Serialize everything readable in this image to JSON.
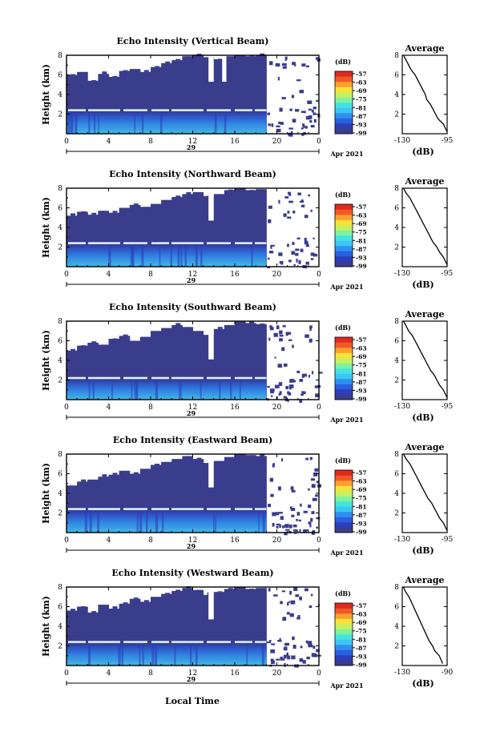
{
  "figure": {
    "xlabel": "Local Time",
    "date_label": "Apr 2021",
    "day_label": "29",
    "units_label": "(dB)"
  },
  "colorbar": {
    "ticks": [
      "-57",
      "-63",
      "-69",
      "-75",
      "-81",
      "-87",
      "-93",
      "-99"
    ],
    "colors": [
      "#3a3c8c",
      "#2b3fb8",
      "#2a5fe0",
      "#2f8ff0",
      "#3cc6f5",
      "#44e3e0",
      "#7ef2a0",
      "#c7f060",
      "#f5e23a",
      "#f8a030",
      "#f05a28",
      "#e02a20"
    ]
  },
  "chart_data": [
    {
      "type": "heatmap",
      "title": "Echo Intensity (Vertical Beam)",
      "ylabel": "Height (km)",
      "x_ticks": [
        "0",
        "4",
        "8",
        "12",
        "16",
        "20",
        "0"
      ],
      "y_ticks": [
        "8",
        "6",
        "4",
        "2"
      ],
      "xlim_hours": [
        0,
        24
      ],
      "ylim_km": [
        0,
        8
      ],
      "data_end_hour": 19,
      "bright_layer_km": 2.4,
      "top_profile_km": [
        6.0,
        6.3,
        5.4,
        6.1,
        5.8,
        6.4,
        6.6,
        6.3,
        6.8,
        7.2,
        7.5,
        7.9,
        8.0,
        7.8,
        7.6,
        7.9,
        8.0,
        7.9,
        8.0
      ],
      "gap_hours": [
        [
          13.5,
          14.0
        ],
        [
          14.8,
          15.2
        ]
      ],
      "average_profile": {
        "title": "Average",
        "xlabel": "(dB)",
        "x_ticks": [
          "-130",
          "-95"
        ],
        "xlim": [
          -130,
          -95
        ],
        "ylim_km": [
          0,
          8
        ],
        "y_ticks": [
          "8",
          "6",
          "4",
          "2"
        ],
        "height_km": [
          0.2,
          1.0,
          1.5,
          2.0,
          2.5,
          3.0,
          3.5,
          4.0,
          4.5,
          5.0,
          5.5,
          6.0,
          6.5,
          7.0,
          7.5,
          8.0
        ],
        "db": [
          -95,
          -98,
          -102,
          -104,
          -106,
          -108,
          -111,
          -112,
          -114,
          -116,
          -118,
          -120,
          -123,
          -125,
          -127,
          -129
        ]
      }
    },
    {
      "type": "heatmap",
      "title": "Echo Intensity (Northward Beam)",
      "ylabel": "Height (km)",
      "x_ticks": [
        "0",
        "4",
        "8",
        "12",
        "16",
        "20",
        "0"
      ],
      "y_ticks": [
        "8",
        "6",
        "4",
        "2"
      ],
      "xlim_hours": [
        0,
        24
      ],
      "ylim_km": [
        0,
        8
      ],
      "data_end_hour": 19,
      "bright_layer_km": 2.4,
      "top_profile_km": [
        5.2,
        5.6,
        5.3,
        5.7,
        5.5,
        6.0,
        6.3,
        6.1,
        6.4,
        6.8,
        7.1,
        7.4,
        7.6,
        7.2,
        7.4,
        7.8,
        8.0,
        7.8,
        7.9
      ],
      "gap_hours": [
        [
          13.5,
          14.0
        ]
      ],
      "average_profile": {
        "title": "Average",
        "xlabel": "(dB)",
        "x_ticks": [
          "-130",
          "-95"
        ],
        "xlim": [
          -130,
          -95
        ],
        "ylim_km": [
          0,
          8
        ],
        "y_ticks": [
          "8",
          "6",
          "4",
          "2"
        ],
        "height_km": [
          0.2,
          1.0,
          1.5,
          2.0,
          2.5,
          3.0,
          3.5,
          4.0,
          4.5,
          5.0,
          5.5,
          6.0,
          6.5,
          7.0,
          7.5,
          8.0
        ],
        "db": [
          -95,
          -98,
          -101,
          -103,
          -106,
          -108,
          -110,
          -112,
          -114,
          -116,
          -118,
          -120,
          -122,
          -124,
          -127,
          -129
        ]
      }
    },
    {
      "type": "heatmap",
      "title": "Echo Intensity (Southward Beam)",
      "ylabel": "Height (km)",
      "x_ticks": [
        "0",
        "4",
        "8",
        "12",
        "16",
        "20",
        "0"
      ],
      "y_ticks": [
        "8",
        "6",
        "4",
        "2"
      ],
      "xlim_hours": [
        0,
        24
      ],
      "ylim_km": [
        0,
        8
      ],
      "data_end_hour": 19,
      "bright_layer_km": 2.2,
      "top_profile_km": [
        5.0,
        5.5,
        5.8,
        5.6,
        6.2,
        6.5,
        6.0,
        6.4,
        7.0,
        7.3,
        7.6,
        7.4,
        7.0,
        6.6,
        7.2,
        7.6,
        8.0,
        7.8,
        7.7
      ],
      "gap_hours": [
        [
          13.5,
          14.0
        ]
      ],
      "average_profile": {
        "title": "Average",
        "xlabel": "(dB)",
        "x_ticks": [
          "-130",
          "-95"
        ],
        "xlim": [
          -130,
          -95
        ],
        "ylim_km": [
          0,
          8
        ],
        "y_ticks": [
          "8",
          "6",
          "4",
          "2"
        ],
        "height_km": [
          0.2,
          1.0,
          1.5,
          2.0,
          2.5,
          3.0,
          3.5,
          4.0,
          4.5,
          5.0,
          5.5,
          6.0,
          6.5,
          7.0,
          7.5,
          8.0
        ],
        "db": [
          -95,
          -98,
          -101,
          -103,
          -105,
          -108,
          -110,
          -112,
          -114,
          -116,
          -118,
          -120,
          -122,
          -125,
          -127,
          -129
        ]
      }
    },
    {
      "type": "heatmap",
      "title": "Echo Intensity (Eastward Beam)",
      "ylabel": "Height (km)",
      "x_ticks": [
        "0",
        "4",
        "8",
        "12",
        "16",
        "20",
        "0"
      ],
      "y_ticks": [
        "8",
        "6",
        "4",
        "2"
      ],
      "xlim_hours": [
        0,
        24
      ],
      "ylim_km": [
        0,
        8
      ],
      "data_end_hour": 19,
      "bright_layer_km": 2.4,
      "top_profile_km": [
        4.8,
        5.2,
        5.4,
        5.7,
        5.9,
        6.3,
        6.0,
        6.5,
        6.9,
        7.2,
        7.5,
        7.8,
        7.5,
        7.1,
        7.3,
        7.7,
        8.0,
        7.9,
        7.8
      ],
      "gap_hours": [
        [
          13.5,
          14.0
        ]
      ],
      "average_profile": {
        "title": "Average",
        "xlabel": "(dB)",
        "x_ticks": [
          "-130",
          "-95"
        ],
        "xlim": [
          -130,
          -95
        ],
        "ylim_km": [
          0,
          8
        ],
        "y_ticks": [
          "8",
          "6",
          "4",
          "2"
        ],
        "height_km": [
          0.2,
          1.0,
          1.5,
          2.0,
          2.5,
          3.0,
          3.5,
          4.0,
          4.5,
          5.0,
          5.5,
          6.0,
          6.5,
          7.0,
          7.5,
          8.0
        ],
        "db": [
          -95,
          -98,
          -101,
          -103,
          -105,
          -107,
          -110,
          -112,
          -114,
          -116,
          -118,
          -120,
          -122,
          -124,
          -127,
          -129
        ]
      }
    },
    {
      "type": "heatmap",
      "title": "Echo Intensity (Westward Beam)",
      "ylabel": "Height (km)",
      "x_ticks": [
        "0",
        "4",
        "8",
        "12",
        "16",
        "20",
        "0"
      ],
      "y_ticks": [
        "8",
        "6",
        "4",
        "2"
      ],
      "xlim_hours": [
        0,
        24
      ],
      "ylim_km": [
        0,
        8
      ],
      "data_end_hour": 19,
      "bright_layer_km": 2.4,
      "top_profile_km": [
        5.6,
        6.0,
        5.4,
        6.2,
        5.8,
        6.3,
        6.8,
        6.5,
        7.0,
        7.3,
        7.6,
        7.9,
        7.7,
        7.2,
        7.5,
        7.8,
        8.0,
        7.8,
        7.9
      ],
      "gap_hours": [
        [
          13.5,
          14.0
        ]
      ],
      "average_profile": {
        "title": "Average",
        "xlabel": "(dB)",
        "x_ticks": [
          "-130",
          "-90"
        ],
        "xlim": [
          -130,
          -90
        ],
        "ylim_km": [
          0,
          8
        ],
        "y_ticks": [
          "8",
          "6",
          "4",
          "2"
        ],
        "height_km": [
          0.2,
          1.0,
          1.5,
          2.0,
          2.5,
          3.0,
          3.5,
          4.0,
          4.5,
          5.0,
          5.5,
          6.0,
          6.5,
          7.0,
          7.5,
          8.0
        ],
        "db": [
          -94,
          -97,
          -101,
          -103,
          -106,
          -108,
          -110,
          -112,
          -114,
          -116,
          -118,
          -120,
          -122,
          -124,
          -127,
          -129
        ]
      }
    }
  ]
}
